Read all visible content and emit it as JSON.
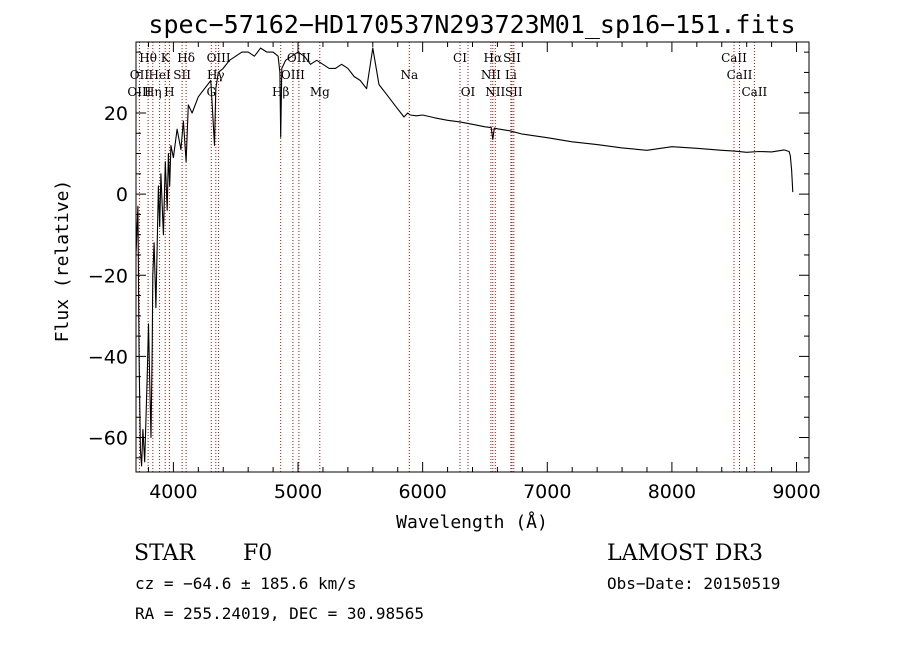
{
  "chart_data": {
    "type": "line",
    "title": "spec−57162−HD170537N293723M01_sp16−151.fits",
    "xlabel": "Wavelength (Å)",
    "ylabel": "Flux (relative)",
    "xlim": [
      3700,
      9100
    ],
    "ylim": [
      -68.5,
      37.5
    ],
    "xticks": [
      4000,
      5000,
      6000,
      7000,
      8000,
      9000
    ],
    "yticks": [
      -60,
      -40,
      -20,
      0,
      20
    ],
    "xtick_labels": [
      "4000",
      "5000",
      "6000",
      "7000",
      "8000",
      "9000"
    ],
    "ytick_labels": [
      "−60",
      "−40",
      "−20",
      "0",
      "20"
    ],
    "series": [
      {
        "name": "flux",
        "x": [
          3700,
          3715,
          3725,
          3735,
          3745,
          3755,
          3770,
          3790,
          3800,
          3810,
          3820,
          3830,
          3835,
          3845,
          3860,
          3880,
          3890,
          3900,
          3920,
          3935,
          3950,
          3960,
          3970,
          3980,
          4000,
          4030,
          4060,
          4080,
          4102,
          4120,
          4150,
          4200,
          4250,
          4300,
          4330,
          4340,
          4360,
          4400,
          4450,
          4500,
          4550,
          4600,
          4650,
          4700,
          4750,
          4800,
          4840,
          4855,
          4861,
          4870,
          4900,
          4950,
          5000,
          5050,
          5100,
          5150,
          5200,
          5250,
          5300,
          5350,
          5400,
          5450,
          5500,
          5550,
          5600,
          5650,
          5700,
          5750,
          5800,
          5850,
          5880,
          5900,
          5950,
          6000,
          6100,
          6200,
          6300,
          6400,
          6500,
          6550,
          6563,
          6575,
          6600,
          6700,
          6800,
          7000,
          7200,
          7400,
          7600,
          7800,
          8000,
          8200,
          8400,
          8500,
          8600,
          8700,
          8800,
          8900,
          8940,
          8950,
          8960,
          8970
        ],
        "y": [
          -15,
          -3,
          -40,
          -63,
          -67,
          -58,
          -66,
          -45,
          -32,
          -46,
          -60,
          -38,
          -20,
          -12,
          -28,
          2,
          -8,
          5,
          -10,
          8,
          -4,
          10,
          2,
          12,
          9,
          16,
          11,
          18,
          8,
          22,
          20,
          24,
          26,
          28,
          12,
          26,
          30,
          31,
          33,
          34,
          35,
          35,
          34,
          36,
          35,
          35,
          34,
          30,
          14,
          31,
          33,
          34,
          35,
          34,
          32,
          33,
          32,
          31,
          31,
          32,
          31,
          29,
          28,
          26,
          36,
          27,
          25,
          23,
          21,
          19,
          20,
          19.5,
          19.3,
          19.5,
          18.8,
          18.2,
          17.8,
          17.2,
          16.6,
          16.4,
          13.5,
          16.3,
          16.1,
          15.6,
          14.8,
          13.9,
          12.9,
          12.2,
          11.4,
          10.8,
          11.7,
          11.3,
          10.8,
          10.6,
          10.3,
          10.5,
          10.4,
          10.9,
          10.5,
          9.5,
          6,
          0.5
        ]
      }
    ],
    "spectral_lines": [
      {
        "label": "Hθ",
        "wavelength": 3797,
        "row": 1
      },
      {
        "label": "K",
        "wavelength": 3934,
        "row": 1
      },
      {
        "label": "Hδ",
        "wavelength": 4102,
        "row": 1
      },
      {
        "label": "OIII",
        "wavelength": 4363,
        "row": 1
      },
      {
        "label": "OIII",
        "wavelength": 5007,
        "row": 1
      },
      {
        "label": "CI",
        "wavelength": 6300,
        "row": 1
      },
      {
        "label": "Hα",
        "wavelength": 6563,
        "row": 1
      },
      {
        "label": "SII",
        "wavelength": 6717,
        "row": 1
      },
      {
        "label": "CaII",
        "wavelength": 8498,
        "row": 1
      },
      {
        "label": "OII",
        "wavelength": 3727,
        "row": 2
      },
      {
        "label": "HeI",
        "wavelength": 3889,
        "row": 2
      },
      {
        "label": "SII",
        "wavelength": 4070,
        "row": 2
      },
      {
        "label": "Hγ",
        "wavelength": 4340,
        "row": 2
      },
      {
        "label": "OIII",
        "wavelength": 4959,
        "row": 2
      },
      {
        "label": "Na",
        "wavelength": 5893,
        "row": 2
      },
      {
        "label": "NII",
        "wavelength": 6548,
        "row": 2
      },
      {
        "label": "Li",
        "wavelength": 6708,
        "row": 2
      },
      {
        "label": "CaII",
        "wavelength": 8542,
        "row": 2
      },
      {
        "label": "OIII",
        "wavelength": 3727,
        "row": 3
      },
      {
        "label": "Hη",
        "wavelength": 3835,
        "row": 3
      },
      {
        "label": "H",
        "wavelength": 3968,
        "row": 3
      },
      {
        "label": "G",
        "wavelength": 4304,
        "row": 3
      },
      {
        "label": "Hβ",
        "wavelength": 4861,
        "row": 3
      },
      {
        "label": "Mg",
        "wavelength": 5175,
        "row": 3
      },
      {
        "label": "OI",
        "wavelength": 6364,
        "row": 3
      },
      {
        "label": "NII",
        "wavelength": 6583,
        "row": 3
      },
      {
        "label": "SII",
        "wavelength": 6731,
        "row": 3
      },
      {
        "label": "CaII",
        "wavelength": 8662,
        "row": 3
      }
    ],
    "line_color": "#000000",
    "marker_color": "#cc0000"
  },
  "info": {
    "object_type": "STAR",
    "subclass": "F0",
    "survey": "LAMOST DR3",
    "velocity": "cz = −64.6 ± 185.6 km/s",
    "obs_date": "Obs−Date: 20150519",
    "coords": "RA = 255.24019, DEC =  30.98565"
  }
}
